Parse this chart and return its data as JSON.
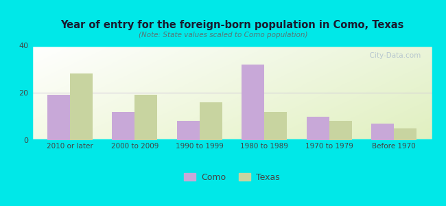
{
  "title": "Year of entry for the foreign-born population in Como, Texas",
  "subtitle": "(Note: State values scaled to Como population)",
  "categories": [
    "2010 or later",
    "2000 to 2009",
    "1990 to 1999",
    "1980 to 1989",
    "1970 to 1979",
    "Before 1970"
  ],
  "como_values": [
    19,
    12,
    8,
    32,
    10,
    7
  ],
  "texas_values": [
    28,
    19,
    16,
    12,
    8,
    5
  ],
  "como_color": "#c8a8d8",
  "texas_color": "#c8d4a0",
  "background_outer": "#00e8e8",
  "ylim": [
    0,
    40
  ],
  "yticks": [
    0,
    20,
    40
  ],
  "bar_width": 0.35,
  "legend_como": "Como",
  "legend_texas": "Texas",
  "watermark": "  City-Data.com"
}
